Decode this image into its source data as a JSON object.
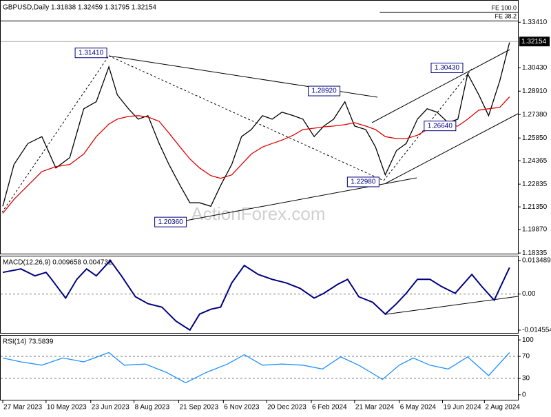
{
  "chart_data": [
    {
      "type": "line",
      "title": "GBPUSD,Daily  1.31838 1.32459 1.31795 1.32154",
      "watermark": "ActionForex.com",
      "x": [
        0,
        8,
        18,
        28,
        38,
        48,
        58,
        67,
        76,
        82,
        90,
        97,
        104,
        112,
        119,
        127,
        134,
        141,
        149,
        156,
        164,
        171,
        178,
        186,
        193,
        200,
        208,
        215,
        223,
        230,
        237,
        245,
        252,
        260,
        267,
        274,
        282,
        289,
        297,
        304,
        311,
        319,
        326,
        333,
        341,
        348,
        356,
        363
      ],
      "series": [
        {
          "color": "#000000",
          "values": [
            1.2139,
            1.2412,
            1.2549,
            1.2594,
            1.2389,
            1.2457,
            1.2776,
            1.2822,
            1.305,
            1.2867,
            1.2776,
            1.2708,
            1.2731,
            1.2549,
            1.2412,
            1.2275,
            1.2162,
            1.2162,
            1.2139,
            1.2275,
            1.2412,
            1.2594,
            1.264,
            1.2731,
            1.2708,
            1.2754,
            1.2731,
            1.2708,
            1.2594,
            1.2663,
            1.2708,
            1.2822,
            1.2663,
            1.264,
            1.2526,
            1.2344,
            1.2503,
            1.2549,
            1.2708,
            1.2776,
            1.2754,
            1.2685,
            1.2708,
            1.3004,
            1.2867,
            1.2731,
            1.2958,
            1.3209
          ]
        },
        {
          "color": "#e00000",
          "values": [
            1.2093,
            1.2184,
            1.2275,
            1.2366,
            1.2398,
            1.2412,
            1.248,
            1.2594,
            1.2676,
            1.2708,
            1.2726,
            1.2731,
            1.2722,
            1.2694,
            1.2617,
            1.2526,
            1.2448,
            1.2389,
            1.2339,
            1.2321,
            1.2344,
            1.2412,
            1.248,
            1.2526,
            1.2549,
            1.2571,
            1.2603,
            1.264,
            1.2649,
            1.2658,
            1.2663,
            1.2672,
            1.2685,
            1.2663,
            1.264,
            1.2594,
            1.2581,
            1.2581,
            1.2603,
            1.264,
            1.2663,
            1.2663,
            1.2663,
            1.2708,
            1.2767,
            1.2776,
            1.2785,
            1.2854
          ]
        }
      ],
      "annotations": [
        {
          "label": "1.31410",
          "x": 76,
          "value": 1.3141
        },
        {
          "label": "1.28920",
          "x": 243,
          "value": 1.2892
        },
        {
          "label": "1.30430",
          "x": 331,
          "value": 1.3043
        },
        {
          "label": "1.26640",
          "x": 326,
          "value": 1.2664
        },
        {
          "label": "1.22980",
          "x": 271,
          "value": 1.2298
        },
        {
          "label": "1.20360",
          "x": 133,
          "value": 1.2036
        }
      ],
      "levels": [
        {
          "label": "FE 100.0",
          "value": 1.3405,
          "from": 270
        },
        {
          "label": "FE 38.2",
          "value": 1.335,
          "from": -1.5
        }
      ],
      "last_price": {
        "label": "1.32154",
        "value": 1.32154
      },
      "xlim": [
        -1.5,
        369
      ],
      "xticks": [
        {
          "value": 0,
          "label": "27 Mar 2023"
        },
        {
          "value": 31,
          "label": "10 May 2023"
        },
        {
          "value": 63,
          "label": "23 Jun 2023"
        },
        {
          "value": 94,
          "label": "8 Aug 2023"
        },
        {
          "value": 126,
          "label": "21 Sep 2023"
        },
        {
          "value": 158,
          "label": "6 Nov 2023"
        },
        {
          "value": 189,
          "label": "20 Dec 2023"
        },
        {
          "value": 221,
          "label": "6 Feb 2024"
        },
        {
          "value": 252,
          "label": "21 Mar 2024"
        },
        {
          "value": 284,
          "label": "6 May 2024"
        },
        {
          "value": 315,
          "label": "19 Jun 2024"
        },
        {
          "value": 345,
          "label": "2 Aug 2024"
        }
      ],
      "ylim": [
        1.1825,
        1.3482
      ],
      "yticks": [
        {
          "value": 1.3341,
          "label": "1.33410"
        },
        {
          "value": 1.3043,
          "label": "1.30430"
        },
        {
          "value": 1.2891,
          "label": "1.28910"
        },
        {
          "value": 1.2738,
          "label": "1.27380"
        },
        {
          "value": 1.2585,
          "label": "1.25850"
        },
        {
          "value": 1.24365,
          "label": "1.24365"
        },
        {
          "value": 1.22835,
          "label": "1.22835"
        },
        {
          "value": 1.2135,
          "label": "1.21350"
        },
        {
          "value": 1.1987,
          "label": "1.19870"
        },
        {
          "value": 1.18335,
          "label": "1.18335"
        }
      ],
      "grid": false
    },
    {
      "type": "line",
      "title": "MACD(12,26,9) 0.009658 0.004732",
      "x": [
        0,
        13,
        23,
        31,
        35,
        45,
        53,
        60,
        67,
        77,
        85,
        95,
        104,
        114,
        124,
        134,
        141,
        149,
        156,
        164,
        173,
        183,
        193,
        203,
        213,
        223,
        230,
        240,
        247,
        255,
        265,
        274,
        282,
        289,
        297,
        306,
        314,
        324,
        336,
        343,
        352,
        363
      ],
      "series": [
        {
          "color": "#000080",
          "values": [
            0.00872,
            0.01012,
            0.00732,
            0.00872,
            0.00592,
            -0.00165,
            0.00592,
            0.01012,
            0.00732,
            0.01349,
            0.00732,
            -0.00109,
            -0.0039,
            -0.0053,
            -0.01091,
            -0.01455,
            -0.0081,
            -0.00614,
            -0.0053,
            0.00451,
            0.01153,
            0.00788,
            0.00592,
            0.00451,
            0.00227,
            -0.00165,
            0.00031,
            0.00395,
            0.00592,
            -0.00109,
            -0.00334,
            -0.0081,
            -0.0039,
            0.00031,
            0.00592,
            0.00592,
            0.00311,
            0.00031,
            0.00788,
            0.00311,
            -0.0025,
            0.01068
          ]
        }
      ],
      "xlim": [
        -1.5,
        369
      ],
      "ylim": [
        -0.01596,
        0.01517
      ],
      "yticks": [
        0.013489,
        {
          "value": 0,
          "label": "0.00"
        },
        -0.014554
      ],
      "grid": true
    },
    {
      "type": "line",
      "title": "RSI(14) 73.5839",
      "x": [
        0,
        13,
        28,
        43,
        58,
        76,
        87,
        102,
        117,
        131,
        146,
        161,
        173,
        186,
        200,
        215,
        229,
        242,
        255,
        272,
        284,
        294,
        306,
        319,
        333,
        348,
        363
      ],
      "series": [
        {
          "color": "#1e90ff",
          "values": [
            67,
            60,
            54,
            67,
            60,
            77,
            54,
            56,
            41,
            22,
            41,
            56,
            73,
            54,
            56,
            54,
            47,
            69,
            54,
            28,
            54,
            67,
            54,
            47,
            69,
            35,
            77
          ]
        }
      ],
      "xlim": [
        -1.5,
        369
      ],
      "ylim": [
        -10.3,
        107.7
      ],
      "yticks": [
        100,
        70,
        30,
        0
      ],
      "grid": true
    }
  ]
}
